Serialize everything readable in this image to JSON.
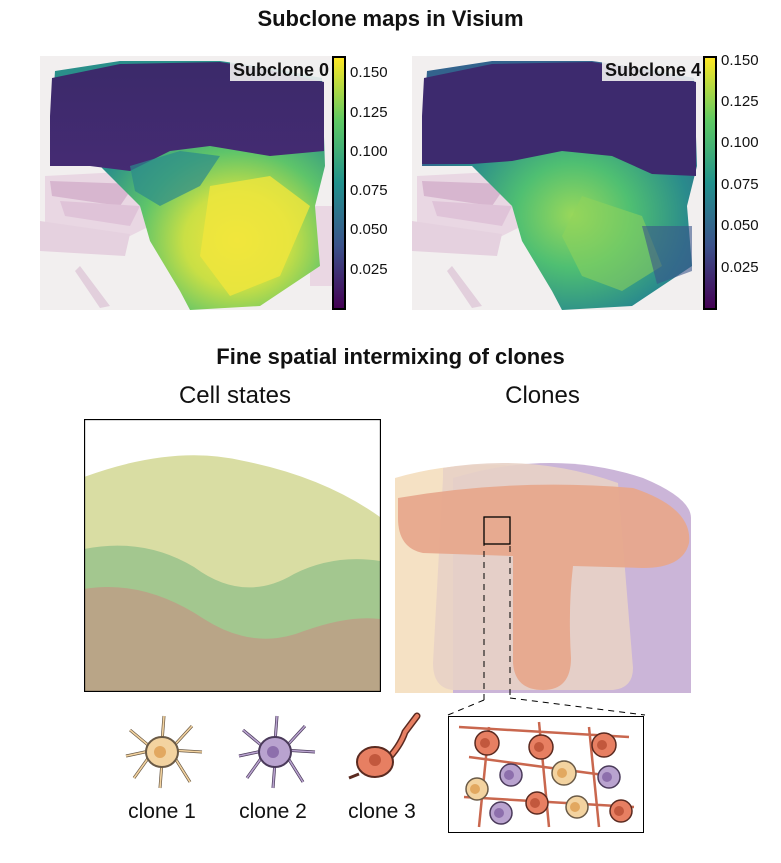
{
  "header": {
    "title": "Subclone maps in Visium"
  },
  "maps": [
    {
      "label": "Subclone 0",
      "colorbar_ticks": [
        "0.150",
        "0.125",
        "0.100",
        "0.075",
        "0.050",
        "0.025"
      ],
      "ticks_values": [
        0.15,
        0.125,
        0.1,
        0.075,
        0.05,
        0.025
      ]
    },
    {
      "label": "Subclone 4",
      "colorbar_ticks": [
        "0.150",
        "0.125",
        "0.100",
        "0.075",
        "0.050",
        "0.025"
      ],
      "ticks_values": [
        0.15,
        0.125,
        0.1,
        0.075,
        0.05,
        0.025
      ]
    }
  ],
  "section2": {
    "title": "Fine spatial intermixing of clones",
    "left_panel_title": "Cell states",
    "right_panel_title": "Clones"
  },
  "legend": {
    "clones": [
      {
        "label": "clone 1",
        "color": "#f3d3a0"
      },
      {
        "label": "clone 2",
        "color": "#b9a3cf"
      },
      {
        "label": "clone 3",
        "color": "#e77f62"
      }
    ]
  },
  "colors": {
    "viridis_low": "#440154",
    "viridis_mid": "#21918c",
    "viridis_high": "#fde725",
    "cell_state_top": "#d9dda3",
    "cell_state_mid": "#a3c78f",
    "cell_state_bottom": "#b9a587"
  }
}
